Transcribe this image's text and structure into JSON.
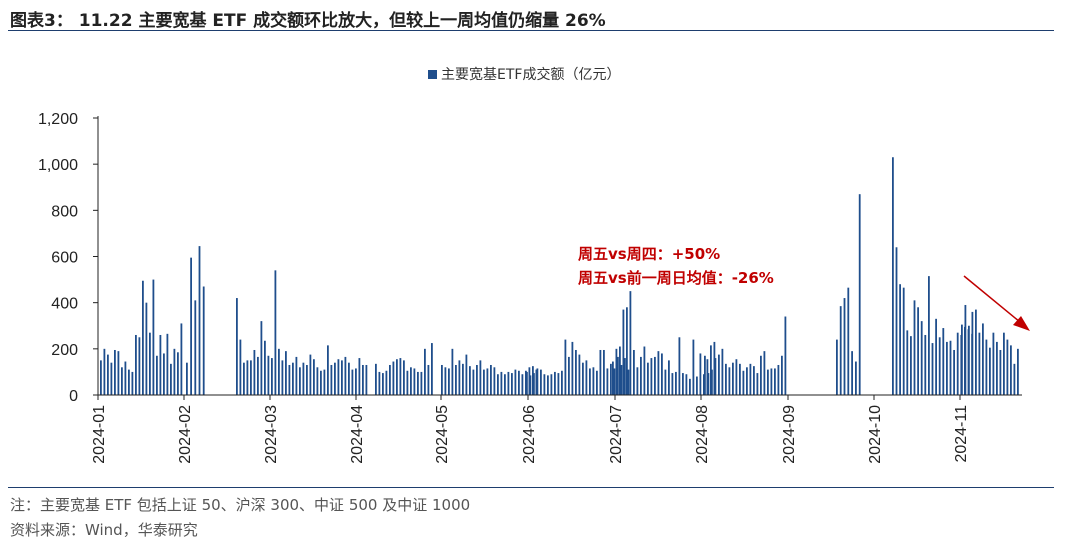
{
  "header": {
    "title": "图表3：  11.22 主要宽基 ETF 成交额环比放大，但较上一周均值仍缩量 26%"
  },
  "chart_data": {
    "type": "bar",
    "title": "",
    "ylabel": "",
    "xlabel": "",
    "ylim": [
      0,
      1200
    ],
    "yticks": [
      "0",
      "200",
      "400",
      "600",
      "800",
      "1,000",
      "1,200"
    ],
    "xticks": [
      "2024-01",
      "2024-02",
      "2024-03",
      "2024-04",
      "2024-05",
      "2024-06",
      "2024-07",
      "2024-08",
      "2024-09",
      "2024-10",
      "2024-11"
    ],
    "grid": false,
    "legend_position": "top-center",
    "series": [
      {
        "name": "主要宽基ETF成交额（亿元）",
        "color": "#1f4e8c",
        "groups": [
          {
            "month": "2024-01",
            "values": [
              150,
              200,
              175,
              140,
              195,
              190,
              120,
              145,
              110,
              100,
              260,
              250,
              495,
              400,
              270,
              500,
              170,
              260,
              180,
              265,
              135,
              200,
              185,
              310
            ]
          },
          {
            "month": "2024-02",
            "values": [
              140,
              595,
              410,
              645,
              470
            ]
          },
          {
            "month": "2024-03",
            "values": [
              420,
              240,
              140,
              150,
              150,
              195,
              165,
              320,
              235,
              170,
              160,
              540,
              200,
              150,
              190,
              130,
              140,
              165,
              120,
              140,
              130,
              175,
              155,
              120,
              105,
              110,
              215,
              130,
              140,
              155,
              150,
              165,
              140,
              110,
              115,
              160,
              130,
              130
            ]
          },
          {
            "month": "2024-04",
            "values": [
              135,
              100,
              95,
              105,
              130,
              145,
              155,
              160,
              150,
              105,
              120,
              115,
              100,
              100,
              200,
              130,
              225
            ]
          },
          {
            "month": "2024-05",
            "values": [
              130,
              120,
              115,
              200,
              130,
              150,
              135,
              175,
              125,
              110,
              130,
              150,
              110,
              115,
              130,
              120,
              90,
              100,
              90,
              100,
              95,
              110,
              105,
              90,
              105,
              120,
              125,
              110
            ]
          },
          {
            "month": "2024-06",
            "values": [
              100,
              85,
              95,
              115,
              110,
              90,
              85,
              90,
              100,
              95,
              105,
              240,
              165,
              230,
              195,
              175,
              140,
              150,
              115,
              120,
              105,
              195,
              195,
              115,
              135,
              115,
              165,
              130,
              160,
              110
            ]
          },
          {
            "month": "2024-07",
            "values": [
              145,
              200,
              210,
              370,
              380,
              450,
              195,
              120,
              165,
              210,
              140,
              160,
              165,
              190,
              180,
              110,
              150,
              95,
              100,
              250,
              95,
              90,
              70,
              240,
              80,
              180,
              90,
              155,
              215,
              230
            ]
          },
          {
            "month": "2024-08",
            "values": [
              170,
              95,
              110,
              160,
              175,
              200,
              135,
              120,
              140,
              155,
              135,
              105,
              120,
              135,
              125,
              95,
              170,
              190,
              110,
              115,
              115,
              130,
              170,
              340
            ]
          },
          {
            "month": "2024-09",
            "values": [
              240,
              385,
              420,
              465,
              190,
              145,
              870
            ]
          },
          {
            "month": "2024-10",
            "values": [
              1030,
              640,
              480,
              465,
              280,
              255,
              410,
              380,
              320,
              260,
              515,
              225,
              330,
              250,
              290,
              230,
              235,
              195,
              270,
              260,
              295,
              285,
              265
            ]
          },
          {
            "month": "2024-11",
            "values": [
              305,
              390,
              300,
              360,
              370,
              270,
              310,
              240,
              205,
              270,
              230,
              195,
              270,
              240,
              215,
              135,
              200
            ]
          }
        ]
      }
    ],
    "annotations": [
      "周五vs周四：+50%",
      "周五vs前一周日均值：-26%"
    ]
  },
  "footer": {
    "note": "注：主要宽基 ETF 包括上证 50、沪深 300、中证 500 及中证 1000",
    "source": "资料来源：Wind，华泰研究"
  },
  "colors": {
    "bar": "#1f4e8c",
    "annotation": "#c00000",
    "rule": "#1e3e6e"
  }
}
